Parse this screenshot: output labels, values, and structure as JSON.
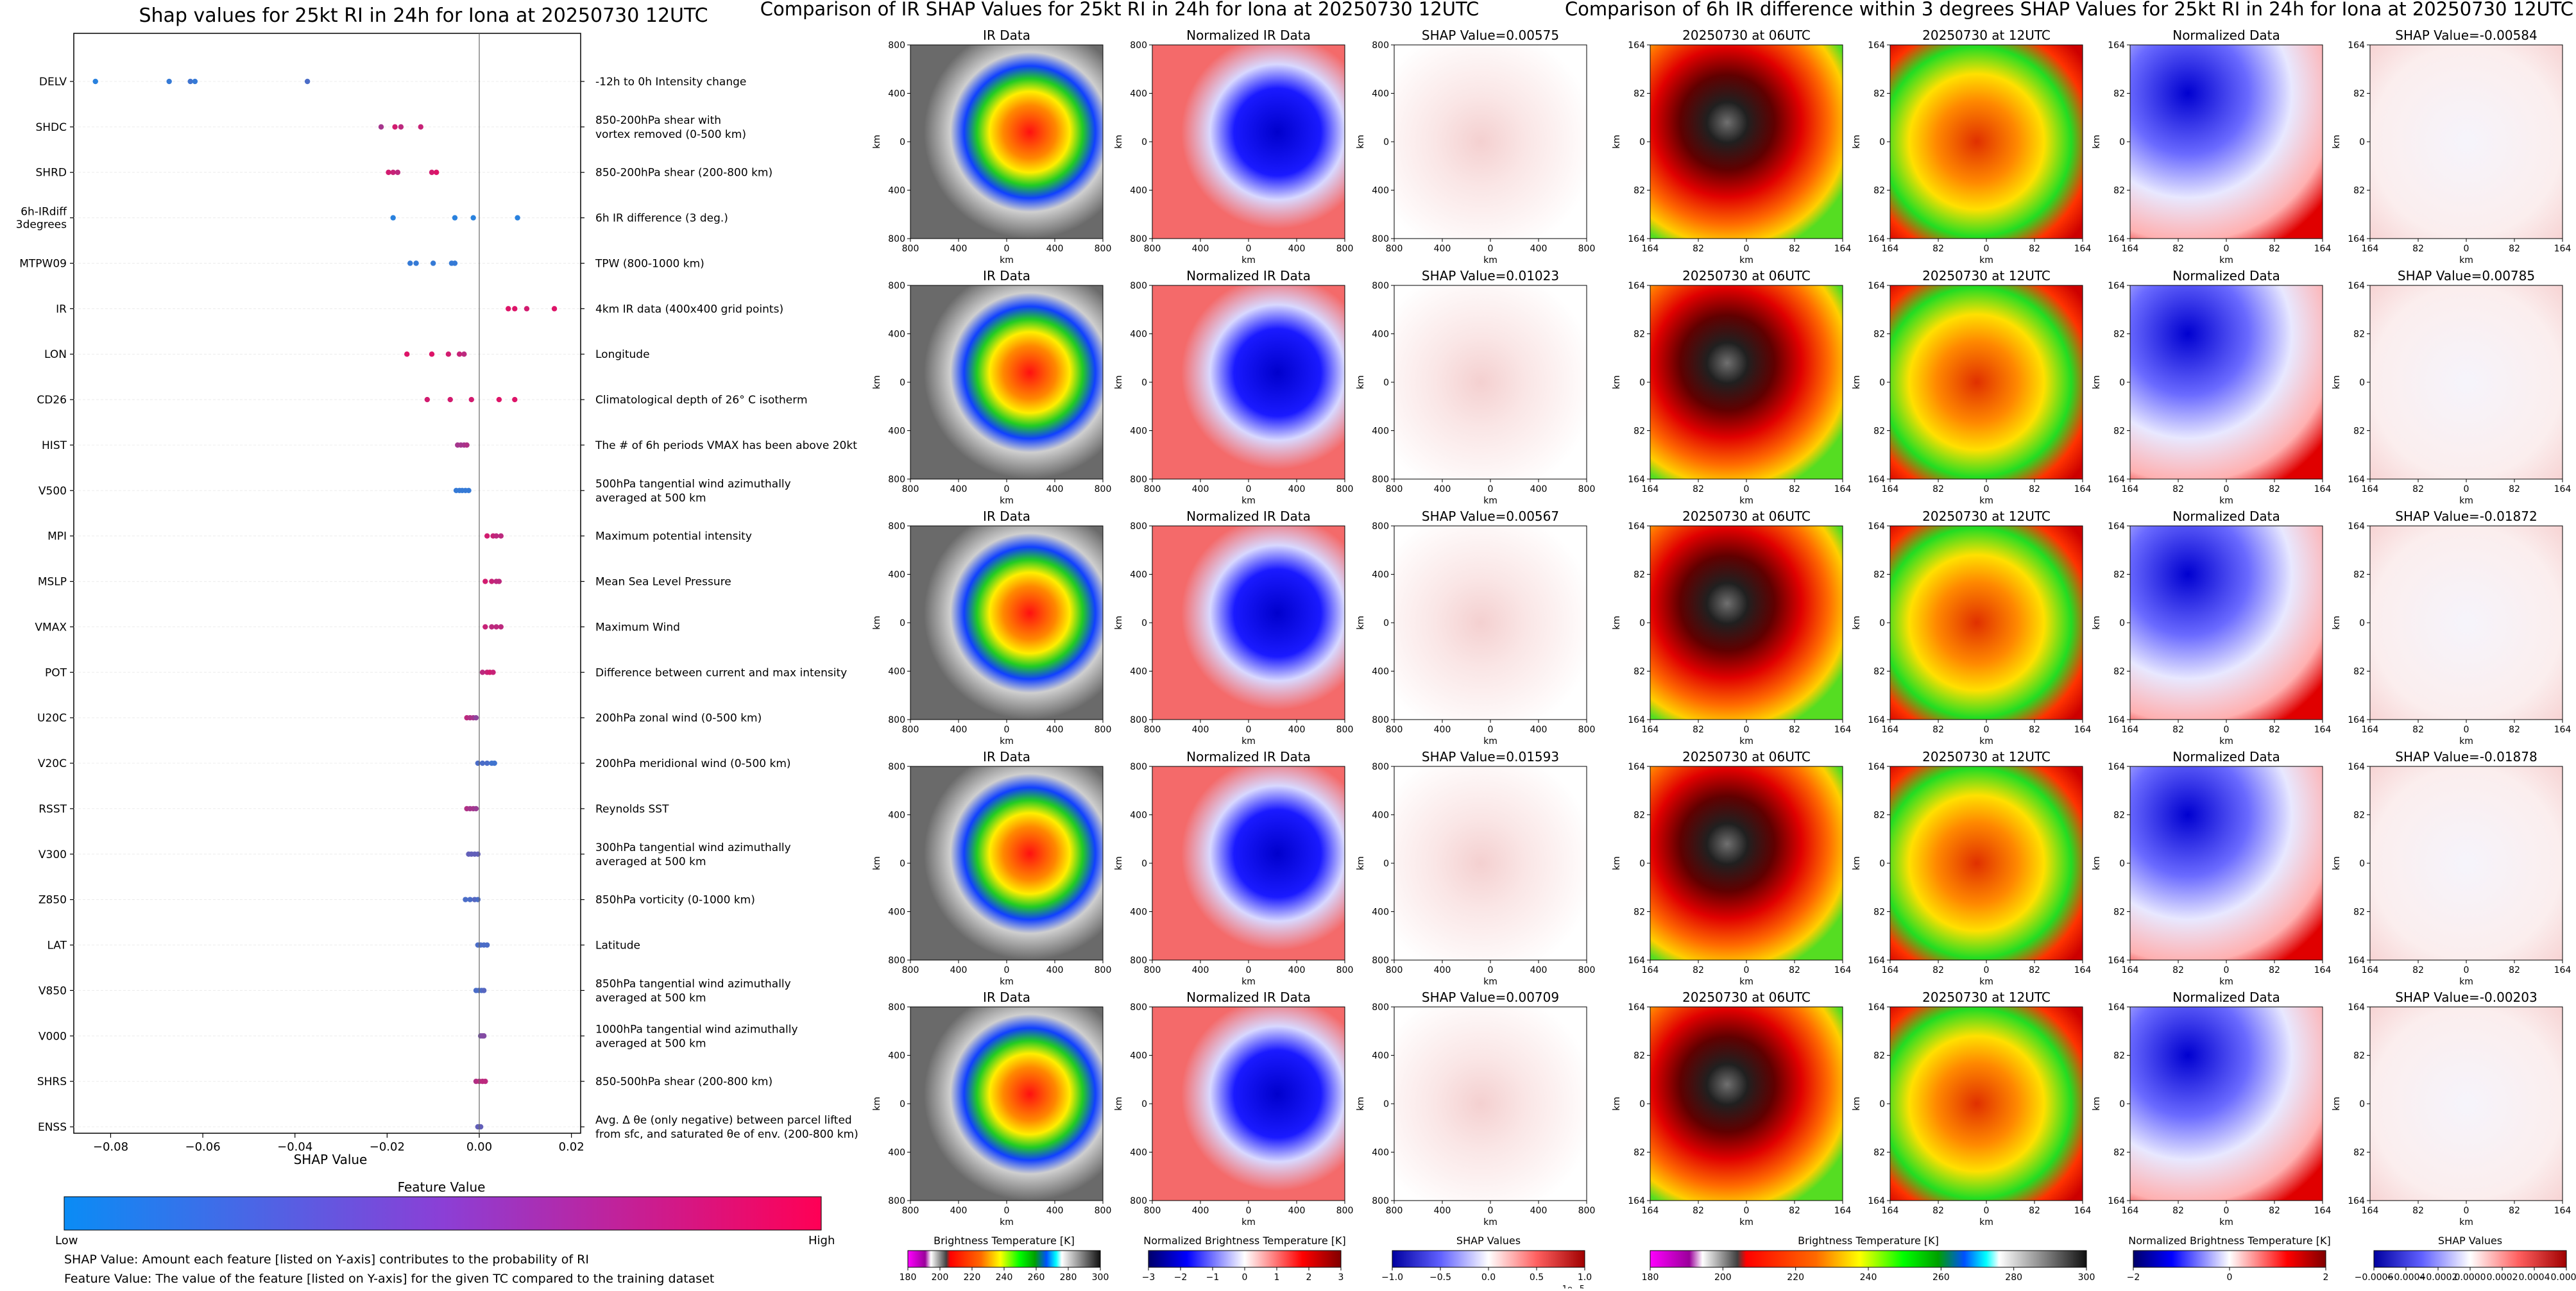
{
  "left_panel": {
    "title": "Shap values for 25kt RI in 24h for Iona at 20250730 12UTC",
    "xlabel": "SHAP Value",
    "colorbar_title": "Feature Value",
    "colorbar_low": "Low",
    "colorbar_high": "High",
    "footnote_1": "SHAP Value: Amount each feature [listed on Y-axis] contributes to the probability of RI",
    "footnote_2": "Feature Value: The value of the feature [listed on Y-axis] for the given TC compared to the training dataset",
    "colors": {
      "low": "#1e88e5",
      "high": "#ff0052"
    }
  },
  "middle_panel": {
    "title": "Comparison of IR SHAP Values for 25kt RI in 24h for Iona at 20250730 12UTC",
    "col_titles": [
      "IR Data",
      "Normalized IR Data"
    ],
    "shap_titles": [
      "SHAP Value=0.00575",
      "SHAP Value=0.01023",
      "SHAP Value=0.00567",
      "SHAP Value=0.01593",
      "SHAP Value=0.00709"
    ],
    "axis_unit": "km",
    "ticks": [
      "800",
      "400",
      "0",
      "400",
      "800"
    ],
    "colorbars": [
      {
        "label": "Brightness Temperature [K]",
        "ticks": [
          "180",
          "200",
          "220",
          "240",
          "260",
          "280",
          "300"
        ]
      },
      {
        "label": "Normalized Brightness Temperature [K]",
        "ticks": [
          "−3",
          "−2",
          "−1",
          "0",
          "1",
          "2",
          "3"
        ]
      },
      {
        "label": "SHAP Values",
        "ticks": [
          "−1.0",
          "−0.5",
          "0.0",
          "0.5",
          "1.0"
        ],
        "exponent": "1e−5"
      }
    ]
  },
  "right_panel": {
    "title": "Comparison of 6h IR difference within 3 degrees SHAP Values for 25kt RI in 24h for Iona at 20250730 12UTC",
    "col_titles": [
      "20250730 at 06UTC",
      "20250730 at 12UTC",
      "Normalized Data"
    ],
    "shap_titles": [
      "SHAP Value=-0.00584",
      "SHAP Value=0.00785",
      "SHAP Value=-0.01872",
      "SHAP Value=-0.01878",
      "SHAP Value=-0.00203"
    ],
    "axis_unit": "km",
    "ticks": [
      "164",
      "82",
      "0",
      "82",
      "164"
    ],
    "colorbars": [
      {
        "label": "Brightness Temperature [K]",
        "ticks": [
          "180",
          "200",
          "220",
          "240",
          "260",
          "280",
          "300"
        ]
      },
      {
        "label": "Normalized Brightness Temperature [K]",
        "ticks": [
          "−2",
          "0",
          "2"
        ]
      },
      {
        "label": "SHAP Values",
        "ticks": [
          "−0.0006",
          "−0.0004",
          "−0.0002",
          "0.0000",
          "0.0002",
          "0.0004",
          "0.0006"
        ]
      }
    ]
  },
  "chart_data": {
    "type": "scatter",
    "title": "Shap values for 25kt RI in 24h for Iona at 20250730 12UTC",
    "xlabel": "SHAP Value",
    "xlim": [
      -0.088,
      0.022
    ],
    "xticks": [
      -0.08,
      -0.06,
      -0.04,
      -0.02,
      0.0,
      0.02
    ],
    "xtick_labels": [
      "−0.08",
      "−0.06",
      "−0.04",
      "−0.02",
      "0.00",
      "0.02"
    ],
    "features": [
      {
        "name": "DELV",
        "desc": "-12h to 0h Intensity change",
        "points": [
          [
            -0.0833,
            0.05
          ],
          [
            -0.0673,
            0.1
          ],
          [
            -0.0627,
            0.15
          ],
          [
            -0.0617,
            0.1
          ],
          [
            -0.0373,
            0.2
          ]
        ]
      },
      {
        "name": "SHDC",
        "desc": "850-200hPa shear with\nvortex removed (0-500 km)",
        "points": [
          [
            -0.0213,
            0.6
          ],
          [
            -0.0183,
            0.8
          ],
          [
            -0.017,
            0.7
          ],
          [
            -0.0127,
            0.75
          ]
        ]
      },
      {
        "name": "SHRD",
        "desc": "850-200hPa shear (200-800 km)",
        "points": [
          [
            -0.0197,
            0.8
          ],
          [
            -0.0187,
            0.75
          ],
          [
            -0.0177,
            0.7
          ],
          [
            -0.0103,
            0.8
          ],
          [
            -0.0093,
            0.85
          ]
        ]
      },
      {
        "name": "6h-IRdiff\n3degrees",
        "desc": "6h IR difference (3 deg.)",
        "points": [
          [
            -0.0187,
            0.05
          ],
          [
            -0.0053,
            0.05
          ],
          [
            -0.0013,
            0.05
          ],
          [
            0.0083,
            0.05
          ]
        ]
      },
      {
        "name": "MTPW09",
        "desc": "TPW (800-1000 km)",
        "points": [
          [
            -0.015,
            0.1
          ],
          [
            -0.0137,
            0.1
          ],
          [
            -0.01,
            0.1
          ],
          [
            -0.006,
            0.1
          ],
          [
            -0.0053,
            0.1
          ]
        ]
      },
      {
        "name": "IR",
        "desc": "4km IR data (400x400 grid points)",
        "points": [
          [
            0.0063,
            0.85
          ],
          [
            0.0077,
            0.85
          ],
          [
            0.0103,
            0.8
          ],
          [
            0.0163,
            0.85
          ]
        ]
      },
      {
        "name": "LON",
        "desc": "Longitude",
        "points": [
          [
            -0.0157,
            0.85
          ],
          [
            -0.0103,
            0.85
          ],
          [
            -0.0067,
            0.8
          ],
          [
            -0.0043,
            0.75
          ],
          [
            -0.0033,
            0.7
          ]
        ]
      },
      {
        "name": "CD26",
        "desc": "Climatological depth of 26° C isotherm",
        "points": [
          [
            -0.0113,
            0.8
          ],
          [
            -0.0063,
            0.8
          ],
          [
            -0.0017,
            0.8
          ],
          [
            0.0043,
            0.85
          ],
          [
            0.0077,
            0.85
          ]
        ]
      },
      {
        "name": "HIST",
        "desc": "The # of 6h periods VMAX has been above 20kt",
        "points": [
          [
            -0.0047,
            0.6
          ],
          [
            -0.004,
            0.6
          ],
          [
            -0.0033,
            0.6
          ],
          [
            -0.0027,
            0.65
          ]
        ]
      },
      {
        "name": "V500",
        "desc": "500hPa tangential wind azimuthally\naveraged at 500 km",
        "points": [
          [
            -0.005,
            0.1
          ],
          [
            -0.0043,
            0.1
          ],
          [
            -0.0037,
            0.1
          ],
          [
            -0.003,
            0.1
          ],
          [
            -0.0023,
            0.1
          ]
        ]
      },
      {
        "name": "MPI",
        "desc": "Maximum potential intensity",
        "points": [
          [
            0.0017,
            0.8
          ],
          [
            0.003,
            0.75
          ],
          [
            0.0037,
            0.7
          ],
          [
            0.0047,
            0.7
          ]
        ]
      },
      {
        "name": "MSLP",
        "desc": "Mean Sea Level Pressure",
        "points": [
          [
            0.0013,
            0.8
          ],
          [
            0.0027,
            0.75
          ],
          [
            0.0037,
            0.7
          ],
          [
            0.0043,
            0.7
          ]
        ]
      },
      {
        "name": "VMAX",
        "desc": "Maximum Wind",
        "points": [
          [
            0.0013,
            0.75
          ],
          [
            0.0027,
            0.7
          ],
          [
            0.0037,
            0.7
          ],
          [
            0.0047,
            0.7
          ]
        ]
      },
      {
        "name": "POT",
        "desc": "Difference between current and max intensity",
        "points": [
          [
            0.0007,
            0.7
          ],
          [
            0.0017,
            0.75
          ],
          [
            0.0023,
            0.8
          ],
          [
            0.003,
            0.75
          ]
        ]
      },
      {
        "name": "U20C",
        "desc": "200hPa zonal wind (0-500 km)",
        "points": [
          [
            -0.0027,
            0.7
          ],
          [
            -0.002,
            0.65
          ],
          [
            -0.0013,
            0.6
          ],
          [
            -0.0007,
            0.5
          ]
        ]
      },
      {
        "name": "V20C",
        "desc": "200hPa meridional wind (0-500 km)",
        "points": [
          [
            -0.0003,
            0.2
          ],
          [
            0.0007,
            0.2
          ],
          [
            0.0017,
            0.2
          ],
          [
            0.0027,
            0.15
          ],
          [
            0.0033,
            0.15
          ]
        ]
      },
      {
        "name": "RSST",
        "desc": "Reynolds SST",
        "points": [
          [
            -0.0027,
            0.65
          ],
          [
            -0.002,
            0.6
          ],
          [
            -0.0013,
            0.6
          ],
          [
            -0.0007,
            0.55
          ]
        ]
      },
      {
        "name": "V300",
        "desc": "300hPa tangential wind azimuthally\naveraged at 500 km",
        "points": [
          [
            -0.0023,
            0.3
          ],
          [
            -0.0017,
            0.3
          ],
          [
            -0.001,
            0.3
          ],
          [
            -0.0003,
            0.3
          ]
        ]
      },
      {
        "name": "Z850",
        "desc": "850hPa vorticity (0-1000 km)",
        "points": [
          [
            -0.003,
            0.2
          ],
          [
            -0.002,
            0.2
          ],
          [
            -0.001,
            0.25
          ],
          [
            -0.0003,
            0.2
          ]
        ]
      },
      {
        "name": "LAT",
        "desc": "Latitude",
        "points": [
          [
            -0.0003,
            0.2
          ],
          [
            0.0003,
            0.2
          ],
          [
            0.001,
            0.2
          ],
          [
            0.0017,
            0.2
          ]
        ]
      },
      {
        "name": "V850",
        "desc": "850hPa tangential wind azimuthally\naveraged at 500 km",
        "points": [
          [
            -0.0007,
            0.2
          ],
          [
            -0.0001,
            0.2
          ],
          [
            0.0005,
            0.2
          ],
          [
            0.001,
            0.25
          ]
        ]
      },
      {
        "name": "V000",
        "desc": "1000hPa tangential wind azimuthally\naveraged at 500 km",
        "points": [
          [
            0.0003,
            0.4
          ],
          [
            0.0007,
            0.45
          ],
          [
            0.001,
            0.45
          ]
        ]
      },
      {
        "name": "SHRS",
        "desc": "850-500hPa shear (200-800 km)",
        "points": [
          [
            -0.0007,
            0.65
          ],
          [
            0.0,
            0.7
          ],
          [
            0.0007,
            0.7
          ],
          [
            0.0013,
            0.7
          ]
        ]
      },
      {
        "name": "ENSS",
        "desc": "Avg. Δ θe (only negative) between parcel lifted\nfrom sfc, and saturated θe of env. (200-800 km)",
        "points": [
          [
            -0.0003,
            0.3
          ],
          [
            0.0,
            0.3
          ],
          [
            0.0003,
            0.3
          ]
        ]
      }
    ]
  }
}
